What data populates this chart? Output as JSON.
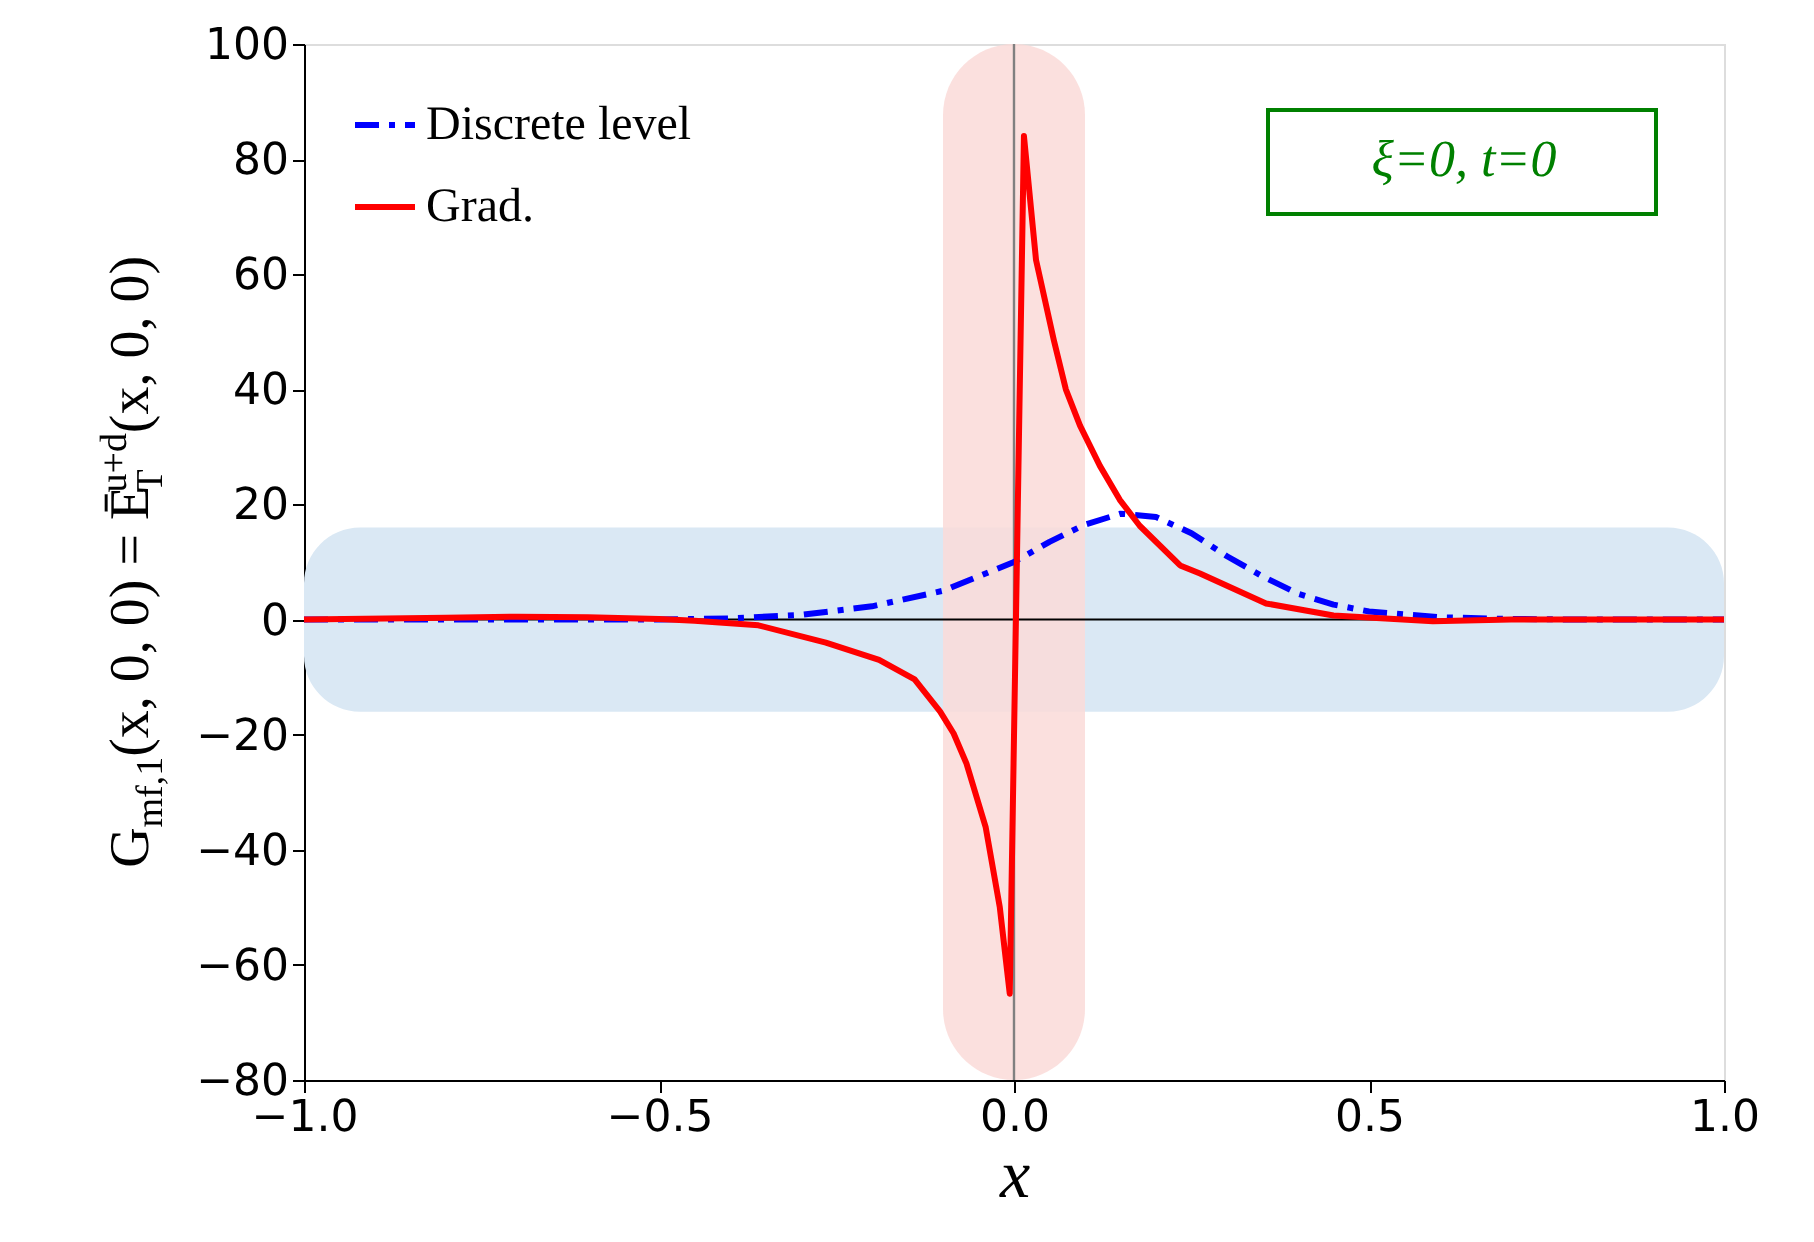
{
  "chart_data": {
    "type": "line",
    "xlabel": "x",
    "ylabel": "G$_{mf,1}$(x, 0, 0) = Ē$_{T}$$^{u+d}$(x, 0, 0)",
    "series": [
      {
        "name": "Discrete level",
        "color": "#0000ff",
        "line_style": "dashdot",
        "x": [
          -1.0,
          -0.5,
          -0.4,
          -0.3,
          -0.2,
          -0.1,
          0.0,
          0.05,
          0.1,
          0.15,
          0.2,
          0.25,
          0.3,
          0.35,
          0.4,
          0.45,
          0.5,
          0.6,
          0.7,
          0.8,
          1.0
        ],
        "values": [
          0,
          0,
          0.2,
          0.8,
          2.3,
          5,
          10,
          13.5,
          16.5,
          18.4,
          17.8,
          15,
          11,
          7.5,
          4.5,
          2.6,
          1.4,
          0.4,
          0.1,
          0,
          0
        ]
      },
      {
        "name": "Grad.",
        "color": "#ff0000",
        "line_style": "solid",
        "x": [
          -1.0,
          -0.8,
          -0.7,
          -0.6,
          -0.5,
          -0.45,
          -0.36,
          -0.265,
          -0.19,
          -0.14,
          -0.104,
          -0.085,
          -0.067,
          -0.04,
          -0.02,
          -0.006,
          0.014,
          0.031,
          0.056,
          0.073,
          0.093,
          0.121,
          0.149,
          0.177,
          0.234,
          0.262,
          0.355,
          0.45,
          0.59,
          0.7,
          0.85,
          1.0
        ],
        "values": [
          0,
          0.3,
          0.5,
          0.4,
          0.1,
          -0.2,
          -1,
          -4,
          -7,
          -10.4,
          -16,
          -19.8,
          -25,
          -36,
          -50,
          -65,
          84,
          62.5,
          48.6,
          40,
          33.7,
          26.7,
          20.8,
          16.3,
          9.4,
          8,
          2.8,
          0.7,
          -0.3,
          0,
          0,
          0
        ]
      }
    ],
    "xlim": [
      -1.0,
      1.0
    ],
    "xticks": [
      {
        "value": -1.0,
        "label": "−1.0"
      },
      {
        "value": -0.5,
        "label": "−0.5"
      },
      {
        "value": 0.0,
        "label": "0.0"
      },
      {
        "value": 0.5,
        "label": "0.5"
      },
      {
        "value": 1.0,
        "label": "1.0"
      }
    ],
    "ylim": [
      -80,
      100
    ],
    "yticks": [
      {
        "value": -80,
        "label": "−80"
      },
      {
        "value": -60,
        "label": "−60"
      },
      {
        "value": -40,
        "label": "−40"
      },
      {
        "value": -20,
        "label": "−20"
      },
      0,
      20,
      40,
      60,
      80,
      100
    ],
    "ref_lines": [
      {
        "axis": "y",
        "value": 0,
        "color": "#000000"
      },
      {
        "axis": "x",
        "value": 0,
        "color": "#808080"
      }
    ],
    "bands": [
      {
        "axis": "y",
        "from": -16,
        "to": 16,
        "color": "#dae8f4"
      },
      {
        "axis": "x",
        "from": -0.1,
        "to": 0.1,
        "color": "#fadad8"
      }
    ],
    "annotations": [
      "ξ=0, t=0"
    ],
    "legend": "top left",
    "grid": false
  }
}
